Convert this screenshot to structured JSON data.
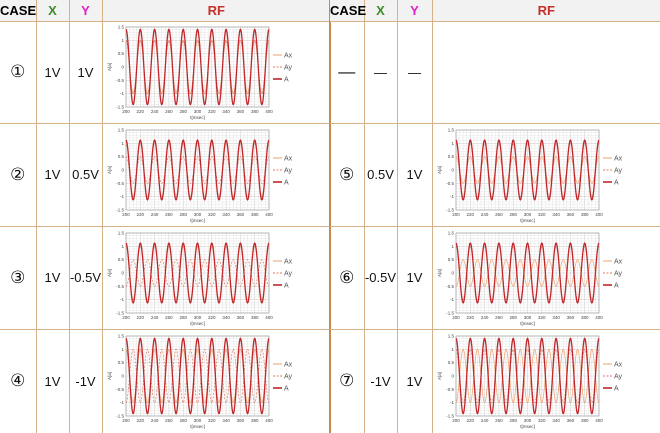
{
  "headers": {
    "case": "CASE",
    "x": "X",
    "y": "Y",
    "rf": "RF"
  },
  "colors": {
    "ax": "#f2a06a",
    "ay": "#e07a5f",
    "a": "#c0262a",
    "grid": "#d9d9d9",
    "accent_line": "#c58a4e"
  },
  "left_rows": [
    {
      "case": "①",
      "x": "1V",
      "y": "1V",
      "has_chart": true
    },
    {
      "case": "②",
      "x": "1V",
      "y": "0.5V",
      "has_chart": true
    },
    {
      "case": "③",
      "x": "1V",
      "y": "-0.5V",
      "has_chart": true
    },
    {
      "case": "④",
      "x": "1V",
      "y": "-1V",
      "has_chart": true
    }
  ],
  "right_rows": [
    {
      "case": "—",
      "x": "—",
      "y": "—",
      "has_chart": false
    },
    {
      "case": "⑤",
      "x": "0.5V",
      "y": "1V",
      "has_chart": true
    },
    {
      "case": "⑥",
      "x": "-0.5V",
      "y": "1V",
      "has_chart": true
    },
    {
      "case": "⑦",
      "x": "-1V",
      "y": "1V",
      "has_chart": true
    }
  ],
  "chart_data": [
    {
      "id": "c1",
      "type": "line",
      "xlabel": "t[msec]",
      "ylabel": "A[a]",
      "x_ticks": [
        "200",
        "220",
        "240",
        "260",
        "280",
        "300",
        "320",
        "340",
        "360",
        "380",
        "400"
      ],
      "y_ticks": [
        "1.5",
        "1",
        "0.5",
        "0",
        "-0.5",
        "-1",
        "-1.5"
      ],
      "xlim": [
        200,
        400
      ],
      "ylim": [
        -1.5,
        1.5
      ],
      "grid": true,
      "legend": "right",
      "cycles": 10,
      "series": [
        {
          "name": "Ax",
          "amplitude": 1
        },
        {
          "name": "Ay",
          "amplitude": 1
        },
        {
          "name": "A",
          "amplitude": 1.41
        }
      ]
    },
    {
      "id": "c2",
      "type": "line",
      "xlabel": "t[msec]",
      "ylabel": "A[a]",
      "x_ticks": [
        "200",
        "220",
        "240",
        "260",
        "280",
        "300",
        "320",
        "340",
        "360",
        "380",
        "400"
      ],
      "y_ticks": [
        "1.5",
        "1",
        "0.5",
        "0",
        "-0.5",
        "-1",
        "-1.5"
      ],
      "xlim": [
        200,
        400
      ],
      "ylim": [
        -1.5,
        1.5
      ],
      "grid": true,
      "legend": "right",
      "cycles": 10,
      "series": [
        {
          "name": "Ax",
          "amplitude": 1
        },
        {
          "name": "Ay",
          "amplitude": 0.5
        },
        {
          "name": "A",
          "amplitude": 1.12
        }
      ]
    },
    {
      "id": "c3",
      "type": "line",
      "xlabel": "t[msec]",
      "ylabel": "A[a]",
      "x_ticks": [
        "200",
        "220",
        "240",
        "260",
        "280",
        "300",
        "320",
        "340",
        "360",
        "380",
        "400"
      ],
      "y_ticks": [
        "1.5",
        "1",
        "0.5",
        "0",
        "-0.5",
        "-1",
        "-1.5"
      ],
      "xlim": [
        200,
        400
      ],
      "ylim": [
        -1.5,
        1.5
      ],
      "grid": true,
      "legend": "right",
      "cycles": 10,
      "series": [
        {
          "name": "Ax",
          "amplitude": 1
        },
        {
          "name": "Ay",
          "amplitude": -0.5
        },
        {
          "name": "A",
          "amplitude": 1.12
        }
      ]
    },
    {
      "id": "c4",
      "type": "line",
      "xlabel": "t[msec]",
      "ylabel": "A[a]",
      "x_ticks": [
        "200",
        "220",
        "240",
        "260",
        "280",
        "300",
        "320",
        "340",
        "360",
        "380",
        "400"
      ],
      "y_ticks": [
        "1.5",
        "1",
        "0.5",
        "0",
        "-0.5",
        "-1",
        "-1.5"
      ],
      "xlim": [
        200,
        400
      ],
      "ylim": [
        -1.5,
        1.5
      ],
      "grid": true,
      "legend": "right",
      "cycles": 10,
      "series": [
        {
          "name": "Ax",
          "amplitude": 1
        },
        {
          "name": "Ay",
          "amplitude": -1
        },
        {
          "name": "A",
          "amplitude": 1.41
        }
      ]
    },
    {
      "id": "c5",
      "type": "line",
      "xlabel": "t[msec]",
      "ylabel": "A[a]",
      "x_ticks": [
        "200",
        "220",
        "240",
        "260",
        "280",
        "300",
        "320",
        "340",
        "360",
        "380",
        "400"
      ],
      "y_ticks": [
        "1.5",
        "1",
        "0.5",
        "0",
        "-0.5",
        "-1",
        "-1.5"
      ],
      "xlim": [
        200,
        400
      ],
      "ylim": [
        -1.5,
        1.5
      ],
      "grid": true,
      "legend": "right",
      "cycles": 10,
      "series": [
        {
          "name": "Ax",
          "amplitude": 0.5
        },
        {
          "name": "Ay",
          "amplitude": 1
        },
        {
          "name": "A",
          "amplitude": 1.12
        }
      ]
    },
    {
      "id": "c6",
      "type": "line",
      "xlabel": "t[msec]",
      "ylabel": "A[a]",
      "x_ticks": [
        "200",
        "220",
        "240",
        "260",
        "280",
        "300",
        "320",
        "340",
        "360",
        "380",
        "400"
      ],
      "y_ticks": [
        "1.5",
        "1",
        "0.5",
        "0",
        "-0.5",
        "-1",
        "-1.5"
      ],
      "xlim": [
        200,
        400
      ],
      "ylim": [
        -1.5,
        1.5
      ],
      "grid": true,
      "legend": "right",
      "cycles": 10,
      "series": [
        {
          "name": "Ax",
          "amplitude": -0.5
        },
        {
          "name": "Ay",
          "amplitude": 1
        },
        {
          "name": "A",
          "amplitude": 1.12
        }
      ]
    },
    {
      "id": "c7",
      "type": "line",
      "xlabel": "t[msec]",
      "ylabel": "A[a]",
      "x_ticks": [
        "200",
        "220",
        "240",
        "260",
        "280",
        "300",
        "320",
        "340",
        "360",
        "380",
        "400"
      ],
      "y_ticks": [
        "1.5",
        "1",
        "0.5",
        "0",
        "-0.5",
        "-1",
        "-1.5"
      ],
      "xlim": [
        200,
        400
      ],
      "ylim": [
        -1.5,
        1.5
      ],
      "grid": true,
      "legend": "right",
      "cycles": 10,
      "series": [
        {
          "name": "Ax",
          "amplitude": -1
        },
        {
          "name": "Ay",
          "amplitude": 1
        },
        {
          "name": "A",
          "amplitude": 1.41
        }
      ]
    }
  ]
}
